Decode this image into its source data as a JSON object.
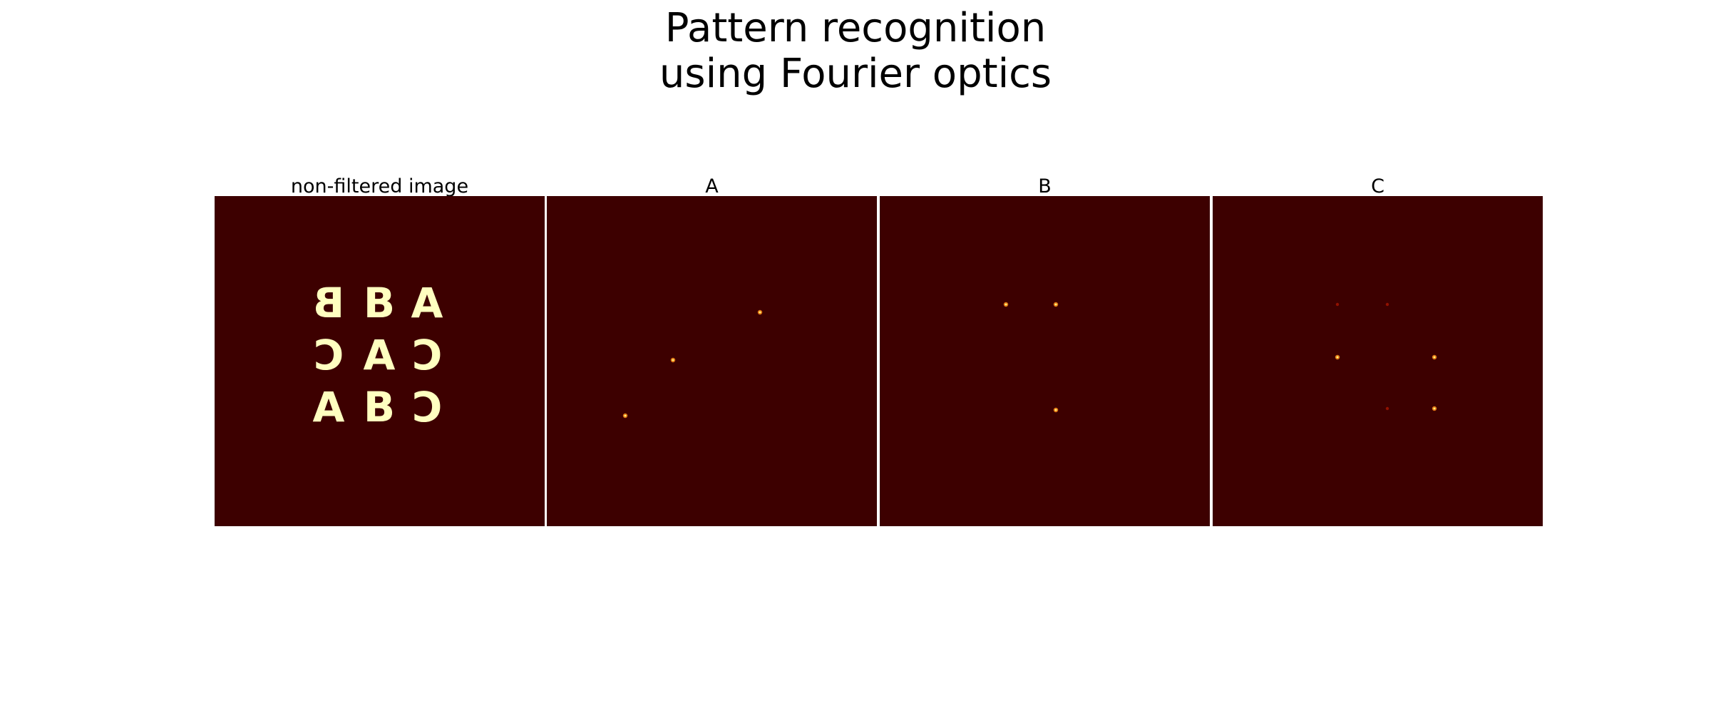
{
  "figure": {
    "title_line1": "Pattern recognition",
    "title_line2": "using Fourier optics"
  },
  "colors": {
    "background": "#3d0000",
    "letters": "#ffffc0",
    "peak_bright": "#ffff80",
    "peak_core": "#ff8c1a",
    "peak_dim": "#a01400"
  },
  "panels": [
    {
      "title": "non-filtered image",
      "letter_grid": [
        [
          "B",
          "B",
          "A"
        ],
        [
          "C",
          "A",
          "C"
        ],
        [
          "A",
          "B",
          "C"
        ]
      ],
      "letter_mirrored": [
        [
          true,
          false,
          false
        ],
        [
          true,
          false,
          true
        ],
        [
          false,
          false,
          true
        ]
      ]
    },
    {
      "title": "A",
      "peaks": [
        {
          "row": 0,
          "col": 2,
          "level": 0.8
        },
        {
          "row": 1,
          "col": 1,
          "level": 0.9
        },
        {
          "row": 2,
          "col": 0,
          "level": 0.8
        }
      ]
    },
    {
      "title": "B",
      "peaks": [
        {
          "row": 0,
          "col": 0,
          "level": 0.9
        },
        {
          "row": 0,
          "col": 1,
          "level": 0.9
        },
        {
          "row": 2,
          "col": 1,
          "level": 0.9
        }
      ]
    },
    {
      "title": "C",
      "peaks": [
        {
          "row": 0,
          "col": 0,
          "level": 0.3
        },
        {
          "row": 0,
          "col": 1,
          "level": 0.3
        },
        {
          "row": 1,
          "col": 0,
          "level": 0.8
        },
        {
          "row": 1,
          "col": 2,
          "level": 0.8
        },
        {
          "row": 2,
          "col": 1,
          "level": 0.3
        },
        {
          "row": 2,
          "col": 2,
          "level": 0.8
        }
      ]
    }
  ]
}
